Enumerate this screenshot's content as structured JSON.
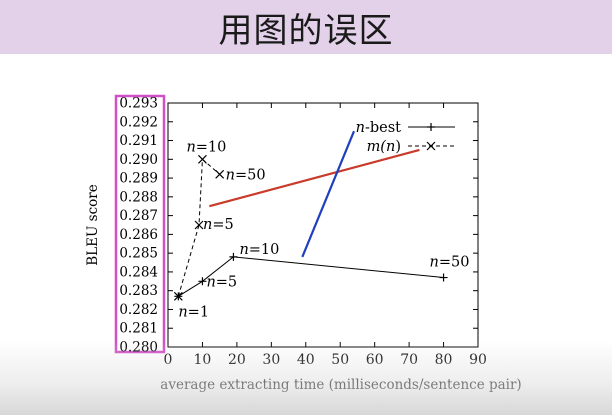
{
  "slide": {
    "title": "用图的误区"
  },
  "chart_data": {
    "type": "line",
    "xlabel": "average extracting time (milliseconds/sentence pair)",
    "ylabel": "BLEU score",
    "xlim": [
      0,
      90
    ],
    "ylim": [
      0.28,
      0.293
    ],
    "x_ticks": [
      "0",
      "10",
      "20",
      "30",
      "40",
      "50",
      "60",
      "70",
      "80",
      "90"
    ],
    "y_ticks": [
      "0.280",
      "0.281",
      "0.282",
      "0.283",
      "0.284",
      "0.285",
      "0.286",
      "0.287",
      "0.288",
      "0.289",
      "0.290",
      "0.291",
      "0.292",
      "0.293"
    ],
    "legend_position": "top-right",
    "series": [
      {
        "name_prefix": "n",
        "name_suffix": "-best",
        "style": "solid",
        "marker": "plus",
        "color": "#000000",
        "points": [
          {
            "x": 3,
            "y": 0.2827,
            "label_italic": "n",
            "label_rest": "=1"
          },
          {
            "x": 10,
            "y": 0.2835,
            "label_italic": "n",
            "label_rest": "=5"
          },
          {
            "x": 19,
            "y": 0.2848,
            "label_italic": "n",
            "label_rest": "=10"
          },
          {
            "x": 80,
            "y": 0.2837,
            "label_italic": "n",
            "label_rest": "=50"
          }
        ]
      },
      {
        "name_prefix": "m(",
        "name_italic": "n",
        "name_suffix": ")",
        "style": "dashed",
        "marker": "cross",
        "color": "#000000",
        "points": [
          {
            "x": 3,
            "y": 0.2827,
            "label_italic": "",
            "label_rest": ""
          },
          {
            "x": 9,
            "y": 0.2865,
            "label_italic": "n",
            "label_rest": "=5"
          },
          {
            "x": 10,
            "y": 0.29,
            "label_italic": "n",
            "label_rest": "=10"
          },
          {
            "x": 15,
            "y": 0.2892,
            "label_italic": "n",
            "label_rest": "=50"
          }
        ]
      }
    ],
    "overlays": [
      {
        "type": "line",
        "color": "#c93a2a",
        "x": [
          12,
          73
        ],
        "y": [
          0.2875,
          0.2905
        ]
      },
      {
        "type": "line",
        "color": "#1f3fbf",
        "x": [
          39,
          54
        ],
        "y": [
          0.2848,
          0.2915
        ]
      }
    ],
    "highlight": {
      "target": "y-axis tick labels",
      "color": "#d14fc8"
    }
  }
}
